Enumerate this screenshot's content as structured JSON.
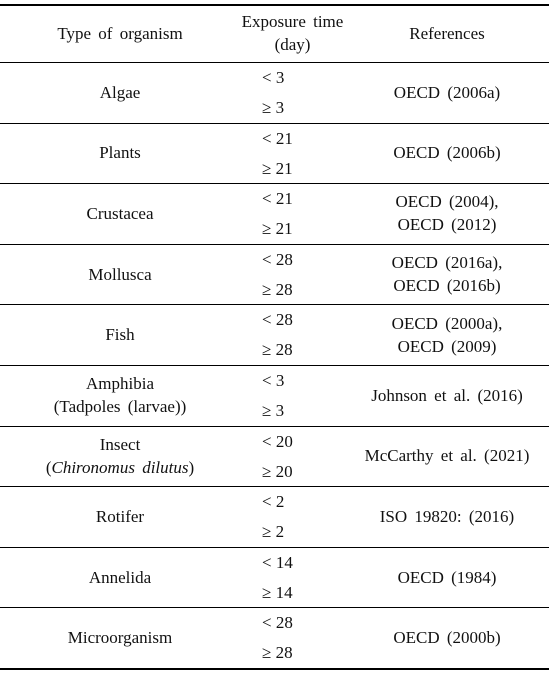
{
  "table": {
    "header": {
      "organism": "Type of organism",
      "exposure": [
        "Exposure time",
        "(day)"
      ],
      "references": "References"
    },
    "rows": [
      {
        "organism": [
          [
            "Algae"
          ]
        ],
        "exposure": [
          "< 3",
          "≥ 3"
        ],
        "references": [
          "OECD (2006a)"
        ]
      },
      {
        "organism": [
          [
            "Plants"
          ]
        ],
        "exposure": [
          "< 21",
          "≥ 21"
        ],
        "references": [
          "OECD (2006b)"
        ]
      },
      {
        "organism": [
          [
            "Crustacea"
          ]
        ],
        "exposure": [
          "< 21",
          "≥ 21"
        ],
        "references": [
          "OECD (2004),",
          "OECD (2012)"
        ]
      },
      {
        "organism": [
          [
            "Mollusca"
          ]
        ],
        "exposure": [
          "< 28",
          "≥ 28"
        ],
        "references": [
          "OECD (2016a),",
          "OECD (2016b)"
        ]
      },
      {
        "organism": [
          [
            "Fish"
          ]
        ],
        "exposure": [
          "< 28",
          "≥ 28"
        ],
        "references": [
          "OECD (2000a),",
          "OECD (2009)"
        ]
      },
      {
        "organism": [
          [
            "Amphibia"
          ],
          [
            "(Tadpoles (larvae))"
          ]
        ],
        "exposure": [
          "< 3",
          "≥ 3"
        ],
        "references": [
          "Johnson et al. (2016)"
        ]
      },
      {
        "organism": [
          [
            "Insect"
          ],
          [
            "(",
            {
              "text": "Chironomus dilutus",
              "italic": true
            },
            ")"
          ]
        ],
        "exposure": [
          "< 20",
          "≥ 20"
        ],
        "references": [
          "McCarthy et al. (2021)"
        ]
      },
      {
        "organism": [
          [
            "Rotifer"
          ]
        ],
        "exposure": [
          "< 2",
          "≥ 2"
        ],
        "references": [
          "ISO 19820: (2016)"
        ]
      },
      {
        "organism": [
          [
            "Annelida"
          ]
        ],
        "exposure": [
          "< 14",
          "≥ 14"
        ],
        "references": [
          "OECD (1984)"
        ]
      },
      {
        "organism": [
          [
            "Microorganism"
          ]
        ],
        "exposure": [
          "< 28",
          "≥ 28"
        ],
        "references": [
          "OECD (2000b)"
        ]
      }
    ]
  }
}
